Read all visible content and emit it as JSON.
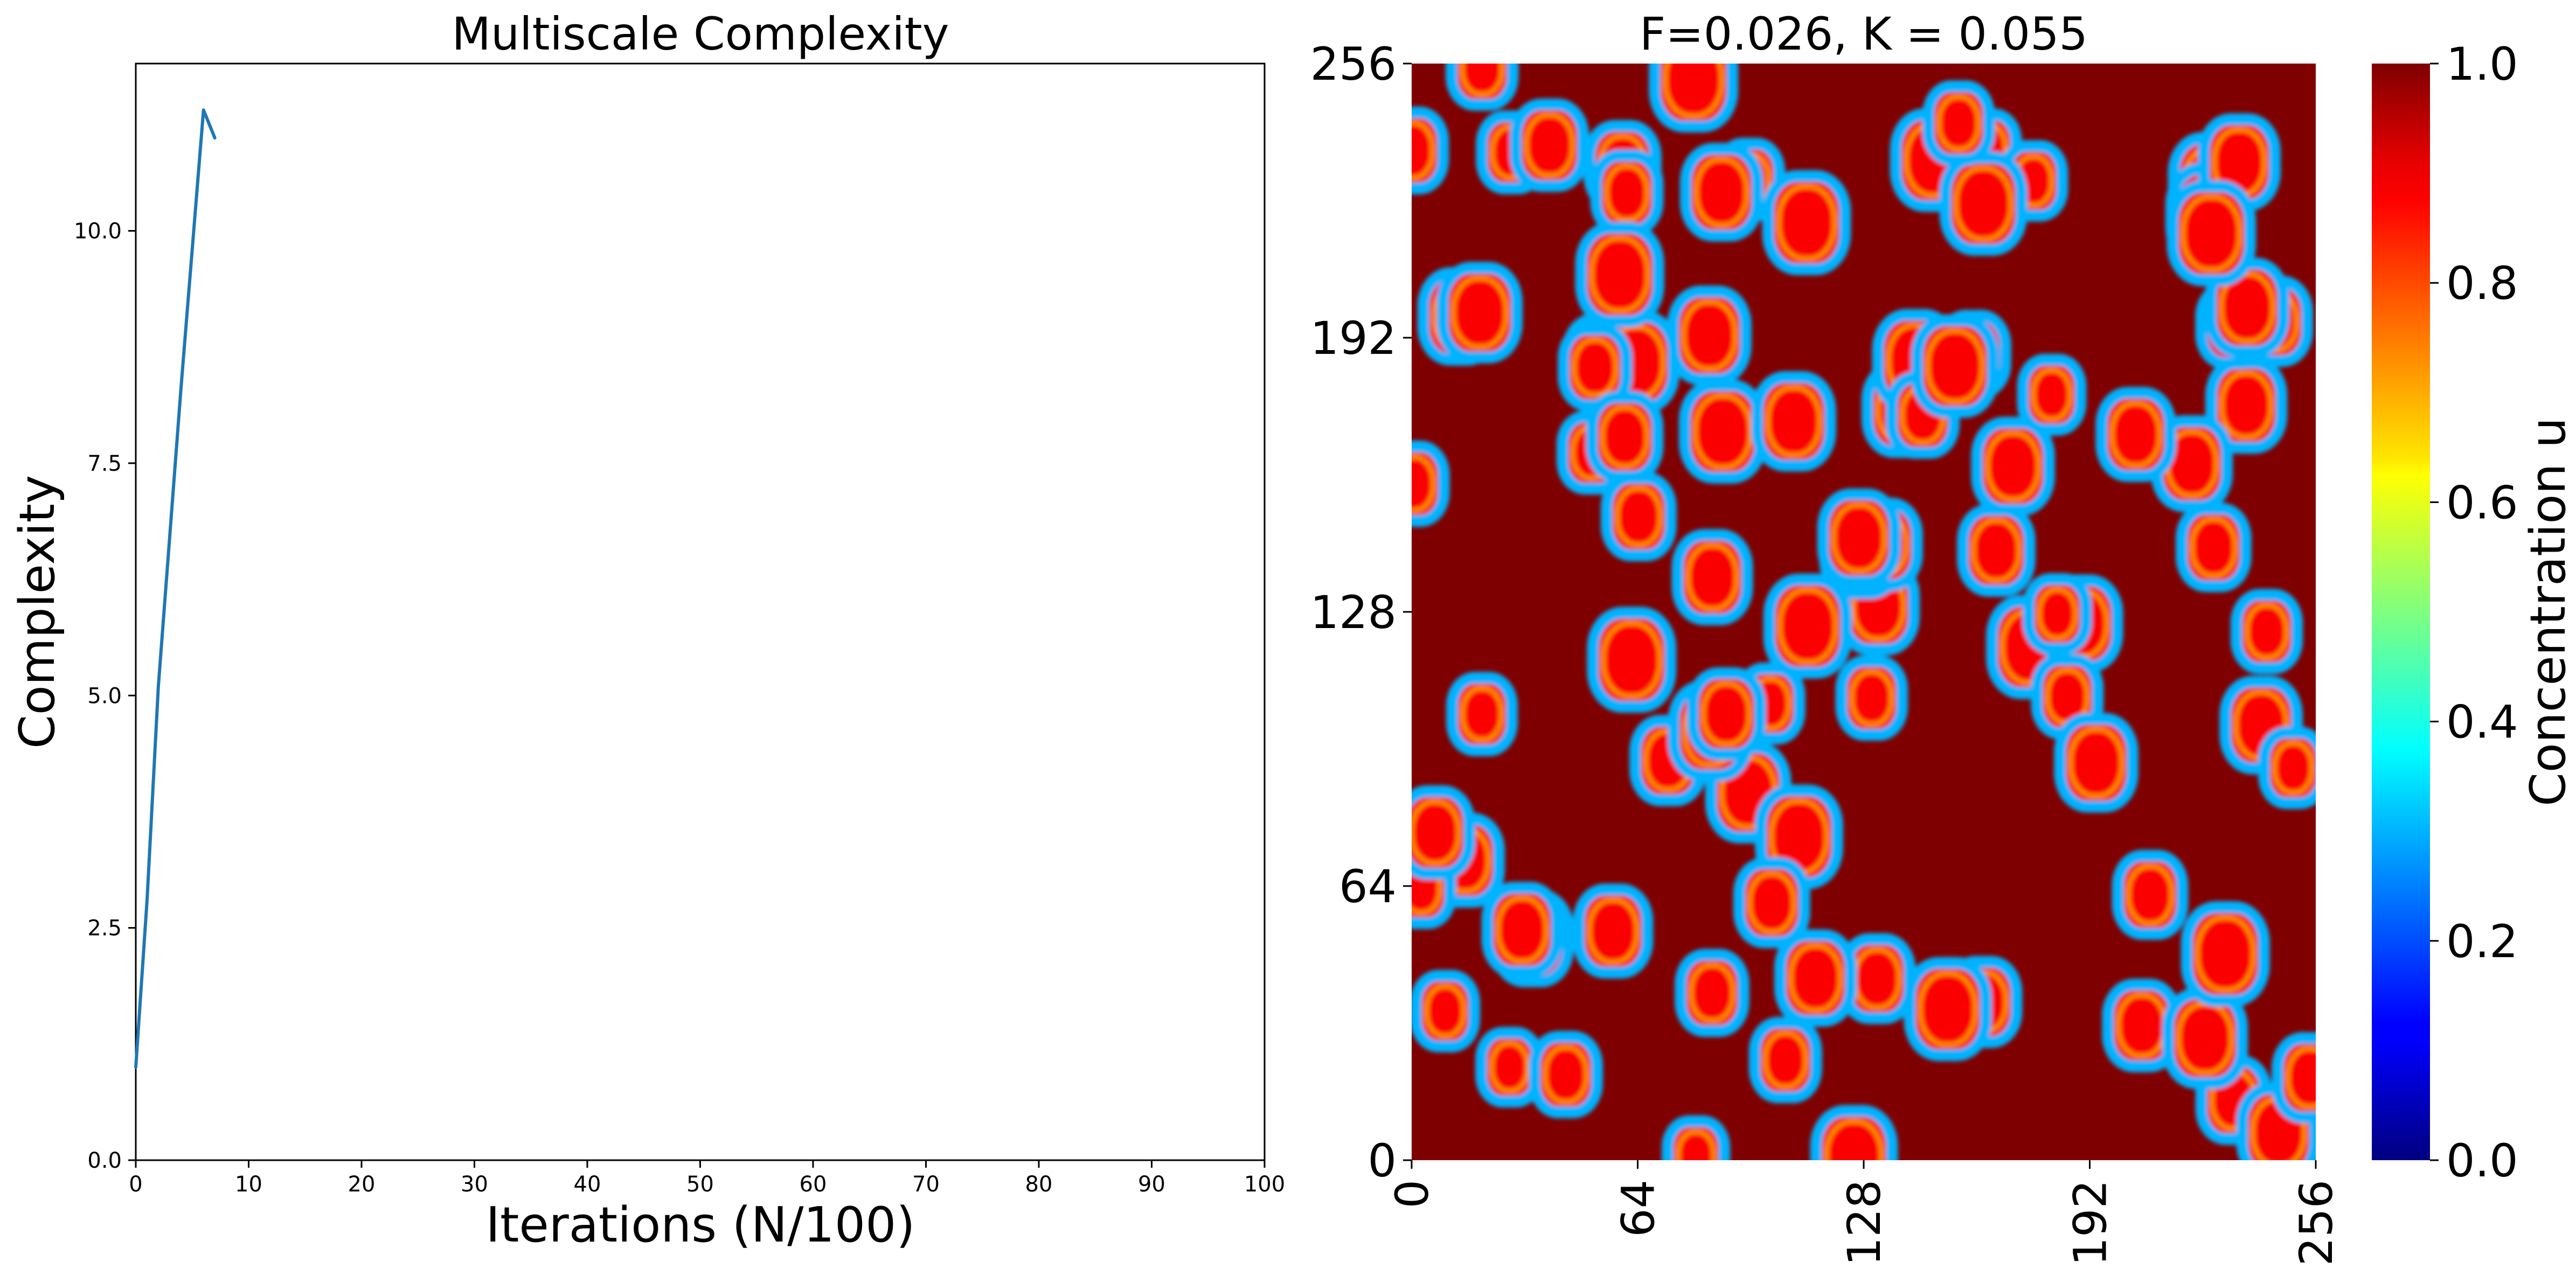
{
  "chart_data": [
    {
      "type": "line",
      "title": "Multiscale Complexity",
      "xlabel": "Iterations (N/100)",
      "ylabel": "Complexity",
      "xlim": [
        0,
        100
      ],
      "ylim": [
        0,
        11.8
      ],
      "xticks": [
        "0",
        "10",
        "20",
        "30",
        "40",
        "50",
        "60",
        "70",
        "80",
        "90",
        "100"
      ],
      "yticks": [
        "0.0",
        "2.5",
        "5.0",
        "7.5",
        "10.0"
      ],
      "grid": false,
      "series": [
        {
          "color": "#1f77b4",
          "x": [
            0,
            1,
            2,
            3,
            4,
            5,
            6,
            7
          ],
          "y": [
            1.0,
            2.8,
            5.1,
            6.7,
            8.3,
            9.8,
            11.3,
            11.0
          ]
        }
      ]
    },
    {
      "type": "heatmap",
      "title": "F=0.026, K = 0.055",
      "xlim": [
        0,
        256
      ],
      "ylim": [
        0,
        256
      ],
      "xticks": [
        "0",
        "64",
        "128",
        "192",
        "256"
      ],
      "yticks": [
        "0",
        "64",
        "128",
        "192",
        "256"
      ],
      "colormap": "jet",
      "colorbar": {
        "label": "Concentration u",
        "range": [
          0.0,
          1.0
        ],
        "ticks": [
          "0.0",
          "0.2",
          "0.4",
          "0.6",
          "0.8",
          "1.0"
        ]
      },
      "background_value": 1.0,
      "ring_value": 0.3
    }
  ]
}
